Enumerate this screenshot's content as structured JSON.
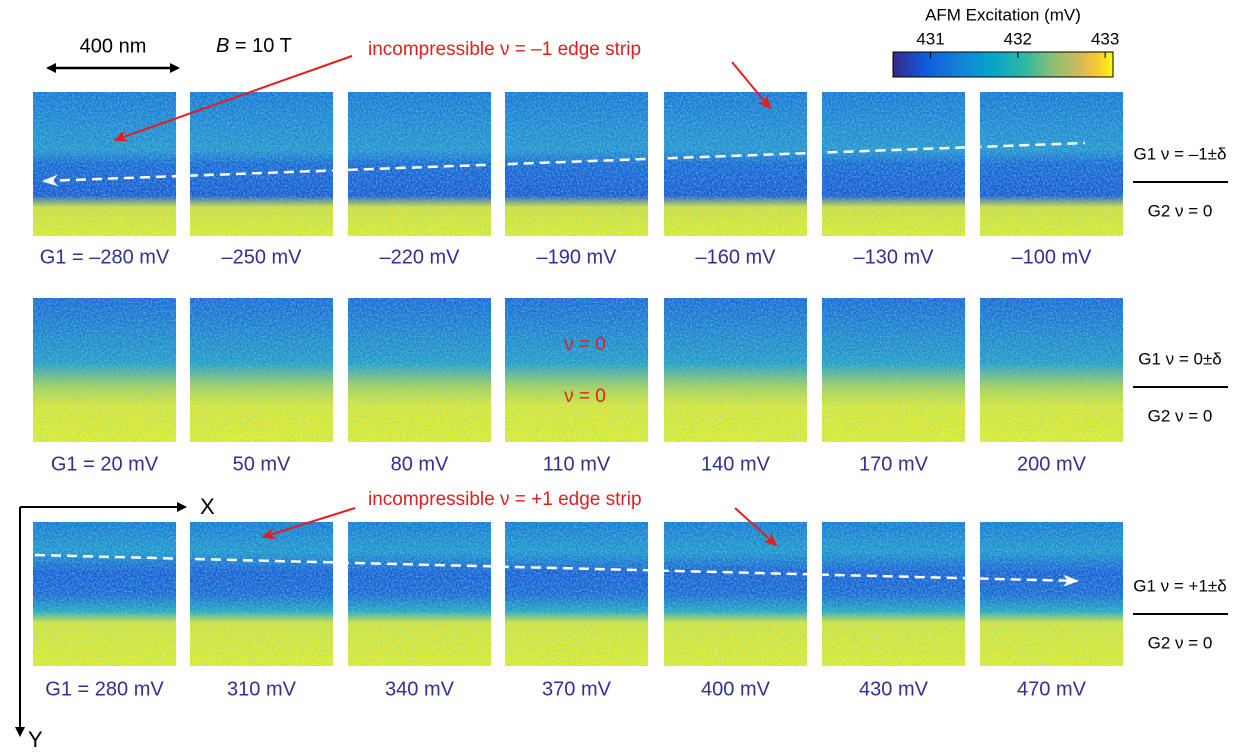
{
  "scale_bar": "400 nm",
  "field": {
    "symbol": "B",
    "text": " = 10 T"
  },
  "colorbar": {
    "title": "AFM Excitation (mV)",
    "lim": [
      430.57,
      433.09
    ],
    "ticks": [
      431,
      432,
      433
    ]
  },
  "annotations": {
    "top": "incompressible ν = –1 edge strip",
    "bottom": "incompressible ν = +1 edge strip",
    "nu_zero_upper": "ν = 0",
    "nu_zero_lower": "ν = 0"
  },
  "axes": {
    "x": "X",
    "y": "Y"
  },
  "rows": [
    {
      "labels": [
        "G1 = –280 mV",
        "–250 mV",
        "–220 mV",
        "–190 mV",
        "–160 mV",
        "–130 mV",
        "–100 mV"
      ],
      "g1": "G1 ν = –1±δ",
      "g2": "G2 ν = 0"
    },
    {
      "labels": [
        "G1 = 20 mV",
        "50 mV",
        "80 mV",
        "110 mV",
        "140 mV",
        "170 mV",
        "200 mV"
      ],
      "g1": "G1 ν = 0±δ",
      "g2": "G2 ν = 0"
    },
    {
      "labels": [
        "G1 = 280 mV",
        "310 mV",
        "340 mV",
        "370 mV",
        "400 mV",
        "430 mV",
        "470 mV"
      ],
      "g1": "G1 ν = +1±δ",
      "g2": "G2 ν = 0"
    }
  ]
}
